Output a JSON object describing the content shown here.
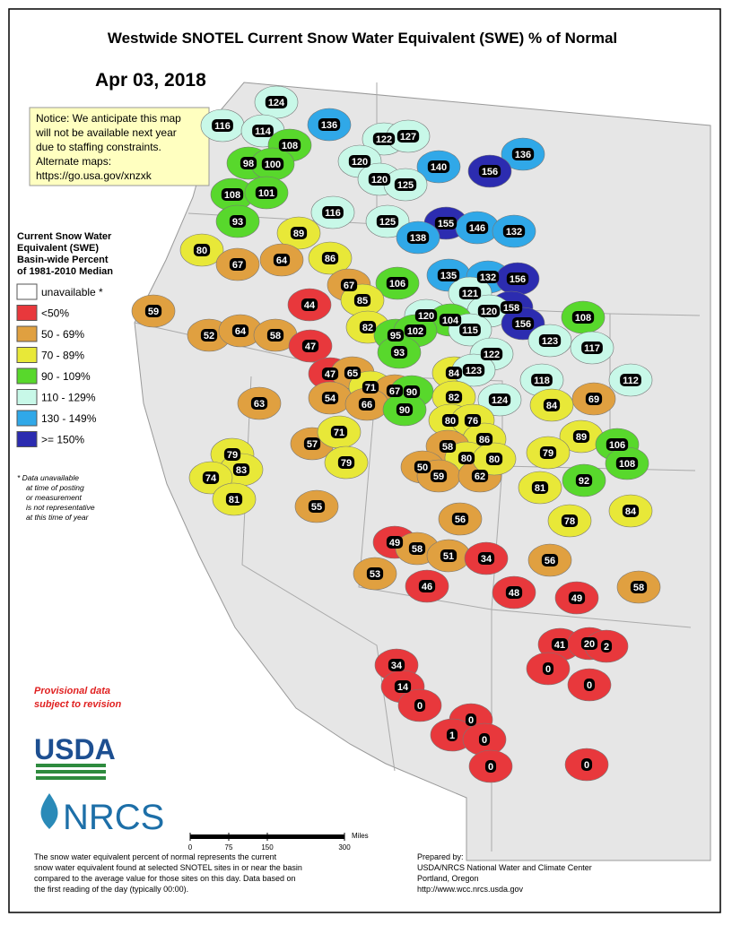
{
  "header": {
    "title": "Westwide SNOTEL Current Snow Water Equivalent (SWE) % of Normal",
    "date": "Apr 03, 2018"
  },
  "notice": [
    "Notice: We anticipate this map",
    "will not be available next year",
    "due to staffing constraints.",
    "Alternate maps:",
    "https://go.usa.gov/xnzxk"
  ],
  "legend": {
    "title": [
      "Current Snow Water",
      "Equivalent (SWE)",
      "Basin-wide Percent",
      "of 1981-2010 Median"
    ],
    "items": [
      {
        "label": "unavailable *",
        "color": "#ffffff"
      },
      {
        "label": "<50%",
        "color": "#e8383c"
      },
      {
        "label": "50 - 69%",
        "color": "#e0a040"
      },
      {
        "label": "70 - 89%",
        "color": "#e8e838"
      },
      {
        "label": "90 - 109%",
        "color": "#58d82c"
      },
      {
        "label": "110 - 129%",
        "color": "#c8f8e8"
      },
      {
        "label": "130 - 149%",
        "color": "#30a8e8"
      },
      {
        "label": ">= 150%",
        "color": "#2c2cb0"
      }
    ],
    "footnote": [
      "*  Data unavailable",
      "at time of posting",
      "or measurement",
      "is not representative",
      "at this time of year"
    ]
  },
  "provisional": [
    "Provisional data",
    "subject to revision"
  ],
  "logos": [
    "USDA",
    "NRCS"
  ],
  "scale": {
    "ticks": [
      0,
      75,
      150,
      300
    ],
    "unit": "Miles"
  },
  "footer_left": [
    "The snow water equivalent percent of normal represents the current",
    "snow water equivalent found at selected SNOTEL sites in or near the basin",
    "compared to the average value for those sites on this day. Data based on",
    "the first reading of the day (typically 00:00)."
  ],
  "footer_right": [
    "Prepared by:",
    "USDA/NRCS National Water and Climate Center",
    "Portland, Oregon",
    "http://www.wcc.nrcs.usda.gov"
  ],
  "basins": [
    {
      "value": 124,
      "color": "#c8f8e8"
    },
    {
      "value": 116,
      "color": "#c8f8e8"
    },
    {
      "value": 114,
      "color": "#c8f8e8"
    },
    {
      "value": 136,
      "color": "#30a8e8"
    },
    {
      "value": 108,
      "color": "#58d82c"
    },
    {
      "value": 98,
      "color": "#58d82c"
    },
    {
      "value": 100,
      "color": "#58d82c"
    },
    {
      "value": 122,
      "color": "#c8f8e8"
    },
    {
      "value": 127,
      "color": "#c8f8e8"
    },
    {
      "value": 120,
      "color": "#c8f8e8"
    },
    {
      "value": 136,
      "color": "#30a8e8"
    },
    {
      "value": 140,
      "color": "#30a8e8"
    },
    {
      "value": 156,
      "color": "#2c2cb0"
    },
    {
      "value": 108,
      "color": "#58d82c"
    },
    {
      "value": 101,
      "color": "#58d82c"
    },
    {
      "value": 120,
      "color": "#c8f8e8"
    },
    {
      "value": 125,
      "color": "#c8f8e8"
    },
    {
      "value": 93,
      "color": "#58d82c"
    },
    {
      "value": 116,
      "color": "#c8f8e8"
    },
    {
      "value": 125,
      "color": "#c8f8e8"
    },
    {
      "value": 155,
      "color": "#2c2cb0"
    },
    {
      "value": 146,
      "color": "#30a8e8"
    },
    {
      "value": 132,
      "color": "#30a8e8"
    },
    {
      "value": 138,
      "color": "#30a8e8"
    },
    {
      "value": 80,
      "color": "#e8e838"
    },
    {
      "value": 89,
      "color": "#e8e838"
    },
    {
      "value": 67,
      "color": "#e0a040"
    },
    {
      "value": 64,
      "color": "#e0a040"
    },
    {
      "value": 86,
      "color": "#e8e838"
    },
    {
      "value": 106,
      "color": "#58d82c"
    },
    {
      "value": 135,
      "color": "#30a8e8"
    },
    {
      "value": 132,
      "color": "#30a8e8"
    },
    {
      "value": 156,
      "color": "#2c2cb0"
    },
    {
      "value": 121,
      "color": "#c8f8e8"
    },
    {
      "value": 67,
      "color": "#e0a040"
    },
    {
      "value": 85,
      "color": "#e8e838"
    },
    {
      "value": 44,
      "color": "#e8383c"
    },
    {
      "value": 59,
      "color": "#e0a040"
    },
    {
      "value": 158,
      "color": "#2c2cb0"
    },
    {
      "value": 120,
      "color": "#c8f8e8"
    },
    {
      "value": 108,
      "color": "#58d82c"
    },
    {
      "value": 120,
      "color": "#c8f8e8"
    },
    {
      "value": 104,
      "color": "#58d82c"
    },
    {
      "value": 115,
      "color": "#c8f8e8"
    },
    {
      "value": 156,
      "color": "#2c2cb0"
    },
    {
      "value": 52,
      "color": "#e0a040"
    },
    {
      "value": 64,
      "color": "#e0a040"
    },
    {
      "value": 58,
      "color": "#e0a040"
    },
    {
      "value": 82,
      "color": "#e8e838"
    },
    {
      "value": 95,
      "color": "#58d82c"
    },
    {
      "value": 102,
      "color": "#58d82c"
    },
    {
      "value": 123,
      "color": "#c8f8e8"
    },
    {
      "value": 117,
      "color": "#c8f8e8"
    },
    {
      "value": 47,
      "color": "#e8383c"
    },
    {
      "value": 93,
      "color": "#58d82c"
    },
    {
      "value": 122,
      "color": "#c8f8e8"
    },
    {
      "value": 47,
      "color": "#e8383c"
    },
    {
      "value": 65,
      "color": "#e0a040"
    },
    {
      "value": 84,
      "color": "#e8e838"
    },
    {
      "value": 123,
      "color": "#c8f8e8"
    },
    {
      "value": 118,
      "color": "#c8f8e8"
    },
    {
      "value": 112,
      "color": "#c8f8e8"
    },
    {
      "value": 71,
      "color": "#e8e838"
    },
    {
      "value": 67,
      "color": "#e0a040"
    },
    {
      "value": 90,
      "color": "#58d82c"
    },
    {
      "value": 63,
      "color": "#e0a040"
    },
    {
      "value": 54,
      "color": "#e0a040"
    },
    {
      "value": 82,
      "color": "#e8e838"
    },
    {
      "value": 124,
      "color": "#c8f8e8"
    },
    {
      "value": 84,
      "color": "#e8e838"
    },
    {
      "value": 69,
      "color": "#e0a040"
    },
    {
      "value": 66,
      "color": "#e0a040"
    },
    {
      "value": 90,
      "color": "#58d82c"
    },
    {
      "value": 80,
      "color": "#e8e838"
    },
    {
      "value": 76,
      "color": "#e8e838"
    },
    {
      "value": 89,
      "color": "#e8e838"
    },
    {
      "value": 106,
      "color": "#58d82c"
    },
    {
      "value": 57,
      "color": "#e0a040"
    },
    {
      "value": 71,
      "color": "#e8e838"
    },
    {
      "value": 86,
      "color": "#e8e838"
    },
    {
      "value": 58,
      "color": "#e0a040"
    },
    {
      "value": 80,
      "color": "#e8e838"
    },
    {
      "value": 79,
      "color": "#e8e838"
    },
    {
      "value": 79,
      "color": "#e8e838"
    },
    {
      "value": 83,
      "color": "#e8e838"
    },
    {
      "value": 50,
      "color": "#e0a040"
    },
    {
      "value": 59,
      "color": "#e0a040"
    },
    {
      "value": 62,
      "color": "#e0a040"
    },
    {
      "value": 80,
      "color": "#e8e838"
    },
    {
      "value": 108,
      "color": "#58d82c"
    },
    {
      "value": 79,
      "color": "#e8e838"
    },
    {
      "value": 74,
      "color": "#e8e838"
    },
    {
      "value": 92,
      "color": "#58d82c"
    },
    {
      "value": 81,
      "color": "#e8e838"
    },
    {
      "value": 81,
      "color": "#e8e838"
    },
    {
      "value": 55,
      "color": "#e0a040"
    },
    {
      "value": 84,
      "color": "#e8e838"
    },
    {
      "value": 56,
      "color": "#e0a040"
    },
    {
      "value": 78,
      "color": "#e8e838"
    },
    {
      "value": 49,
      "color": "#e8383c"
    },
    {
      "value": 58,
      "color": "#e0a040"
    },
    {
      "value": 51,
      "color": "#e0a040"
    },
    {
      "value": 34,
      "color": "#e8383c"
    },
    {
      "value": 56,
      "color": "#e0a040"
    },
    {
      "value": 53,
      "color": "#e0a040"
    },
    {
      "value": 46,
      "color": "#e8383c"
    },
    {
      "value": 48,
      "color": "#e8383c"
    },
    {
      "value": 49,
      "color": "#e8383c"
    },
    {
      "value": 58,
      "color": "#e0a040"
    },
    {
      "value": 41,
      "color": "#e8383c"
    },
    {
      "value": 20,
      "color": "#e8383c"
    },
    {
      "value": 2,
      "color": "#e8383c"
    },
    {
      "value": 34,
      "color": "#e8383c"
    },
    {
      "value": 0,
      "color": "#e8383c"
    },
    {
      "value": 14,
      "color": "#e8383c"
    },
    {
      "value": 0,
      "color": "#e8383c"
    },
    {
      "value": 0,
      "color": "#e8383c"
    },
    {
      "value": 0,
      "color": "#e8383c"
    },
    {
      "value": 1,
      "color": "#e8383c"
    },
    {
      "value": 0,
      "color": "#e8383c"
    },
    {
      "value": 0,
      "color": "#e8383c"
    },
    {
      "value": 0,
      "color": "#e8383c"
    }
  ]
}
